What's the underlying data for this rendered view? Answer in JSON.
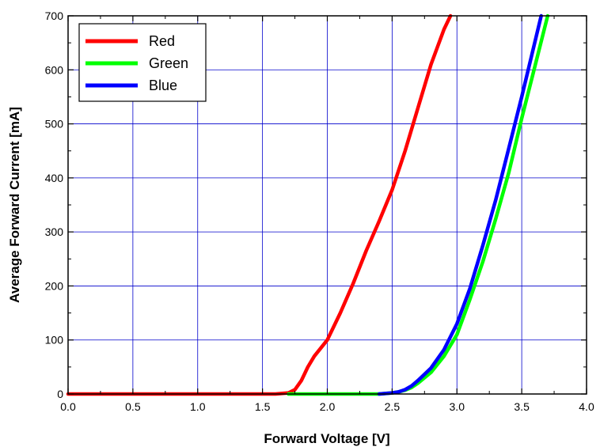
{
  "chart_data": {
    "type": "line",
    "xlabel": "Forward Voltage [V]",
    "ylabel": "Average Forward Current [mA]",
    "xlim": [
      0,
      4
    ],
    "ylim": [
      0,
      700
    ],
    "xticks": [
      "0.0",
      "0.5",
      "1.0",
      "1.5",
      "2.0",
      "2.5",
      "3.0",
      "3.5",
      "4.0"
    ],
    "yticks": [
      "0",
      "100",
      "200",
      "300",
      "400",
      "500",
      "600",
      "700"
    ],
    "grid": true,
    "legend_position": "top-left",
    "series": [
      {
        "name": "Red",
        "color": "#ff0000",
        "x": [
          0.0,
          1.0,
          1.6,
          1.7,
          1.75,
          1.8,
          1.85,
          1.9,
          2.0,
          2.1,
          2.2,
          2.3,
          2.4,
          2.5,
          2.6,
          2.7,
          2.8,
          2.9,
          2.95
        ],
        "y": [
          0,
          0,
          0,
          2,
          8,
          25,
          50,
          70,
          100,
          150,
          205,
          265,
          320,
          378,
          450,
          530,
          610,
          675,
          700
        ]
      },
      {
        "name": "Green",
        "color": "#00ff00",
        "x": [
          1.7,
          2.0,
          2.4,
          2.5,
          2.55,
          2.6,
          2.65,
          2.7,
          2.8,
          2.9,
          3.0,
          3.1,
          3.2,
          3.3,
          3.4,
          3.5,
          3.6,
          3.7
        ],
        "y": [
          0,
          0,
          0,
          2,
          4,
          7,
          12,
          20,
          40,
          70,
          110,
          175,
          245,
          325,
          410,
          510,
          605,
          700
        ]
      },
      {
        "name": "Blue",
        "color": "#0000ff",
        "x": [
          2.4,
          2.5,
          2.55,
          2.6,
          2.65,
          2.7,
          2.8,
          2.9,
          3.0,
          3.1,
          3.2,
          3.3,
          3.4,
          3.5,
          3.6,
          3.65
        ],
        "y": [
          0,
          2,
          4,
          8,
          15,
          25,
          48,
          82,
          130,
          195,
          275,
          360,
          455,
          550,
          650,
          700
        ]
      }
    ]
  }
}
